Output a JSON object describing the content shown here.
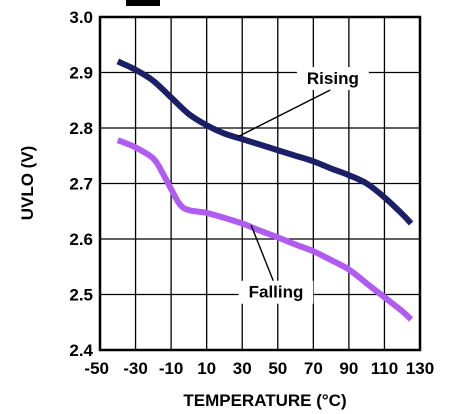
{
  "chart_data": {
    "type": "line",
    "title": "",
    "xlabel": "TEMPERATURE (°C)",
    "ylabel": "UVLO (V)",
    "xlim": [
      -50,
      130
    ],
    "ylim": [
      2.4,
      3.0
    ],
    "x_ticks": [
      -50,
      -30,
      -10,
      10,
      30,
      50,
      70,
      90,
      110,
      130
    ],
    "x_tick_labels": [
      "-50",
      "-30",
      "-10",
      "10",
      "30",
      "50",
      "70",
      "90",
      "110",
      "130"
    ],
    "y_ticks": [
      2.4,
      2.5,
      2.6,
      2.7,
      2.8,
      2.9,
      3.0
    ],
    "y_tick_labels": [
      "2.4",
      "2.5",
      "2.6",
      "2.7",
      "2.8",
      "2.9",
      "3.0"
    ],
    "grid": true,
    "legend": "none",
    "series": [
      {
        "name": "Rising",
        "color": "#1b1f66",
        "x": [
          -40,
          -30,
          -20,
          -10,
          0,
          10,
          20,
          30,
          40,
          50,
          60,
          70,
          80,
          90,
          100,
          110,
          120,
          125
        ],
        "y": [
          2.92,
          2.905,
          2.885,
          2.855,
          2.825,
          2.805,
          2.79,
          2.78,
          2.77,
          2.76,
          2.75,
          2.74,
          2.727,
          2.715,
          2.7,
          2.675,
          2.645,
          2.628
        ]
      },
      {
        "name": "Falling",
        "color": "#b05cf0",
        "x": [
          -40,
          -30,
          -20,
          -15,
          -10,
          -5,
          0,
          10,
          20,
          30,
          40,
          50,
          60,
          70,
          80,
          90,
          100,
          110,
          120,
          125
        ],
        "y": [
          2.778,
          2.765,
          2.745,
          2.72,
          2.69,
          2.662,
          2.652,
          2.647,
          2.638,
          2.628,
          2.615,
          2.603,
          2.59,
          2.578,
          2.562,
          2.545,
          2.52,
          2.495,
          2.47,
          2.455
        ]
      }
    ],
    "annotations": [
      {
        "text": "Rising",
        "series": "Rising",
        "at_x": 28,
        "at_y": 2.785,
        "label_x": 81,
        "label_y": 2.89
      },
      {
        "text": "Falling",
        "series": "Falling",
        "at_x": 35,
        "at_y": 2.625,
        "label_x": 49,
        "label_y": 2.505
      }
    ]
  }
}
